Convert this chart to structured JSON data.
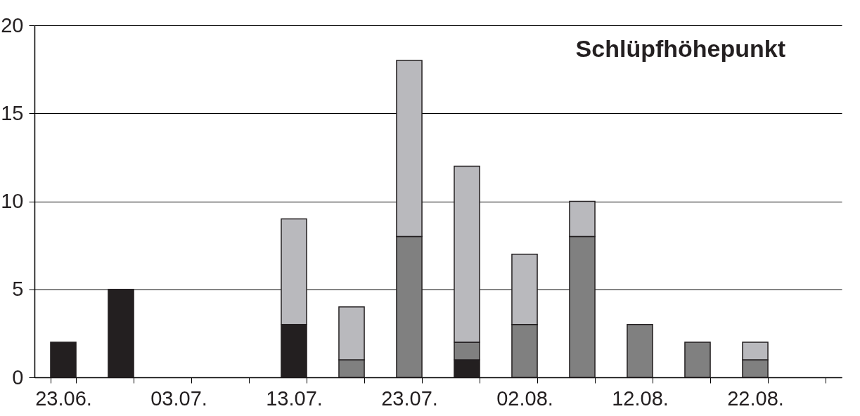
{
  "chart_data": {
    "type": "bar",
    "title": "Schlüpfhöhepunkt",
    "categories": [
      "23.06.",
      null,
      "03.07.",
      null,
      "13.07.",
      null,
      "23.07.",
      null,
      "02.08.",
      null,
      "12.08.",
      null,
      "22.08.",
      null
    ],
    "stacked": true,
    "series": [
      {
        "color": "#231f20",
        "values": [
          2,
          5,
          null,
          null,
          3,
          null,
          null,
          1,
          null,
          null,
          null,
          null,
          null,
          null
        ]
      },
      {
        "color": "#808080",
        "values": [
          null,
          null,
          null,
          null,
          null,
          1,
          8,
          1,
          3,
          8,
          3,
          2,
          1,
          null
        ]
      },
      {
        "color": "#b9b9bd",
        "values": [
          null,
          null,
          null,
          null,
          6,
          3,
          10,
          10,
          4,
          2,
          null,
          null,
          1,
          null
        ]
      }
    ],
    "ylim": [
      0,
      20
    ],
    "yticks": [
      0,
      5,
      10,
      15,
      20
    ],
    "grid": "y"
  }
}
